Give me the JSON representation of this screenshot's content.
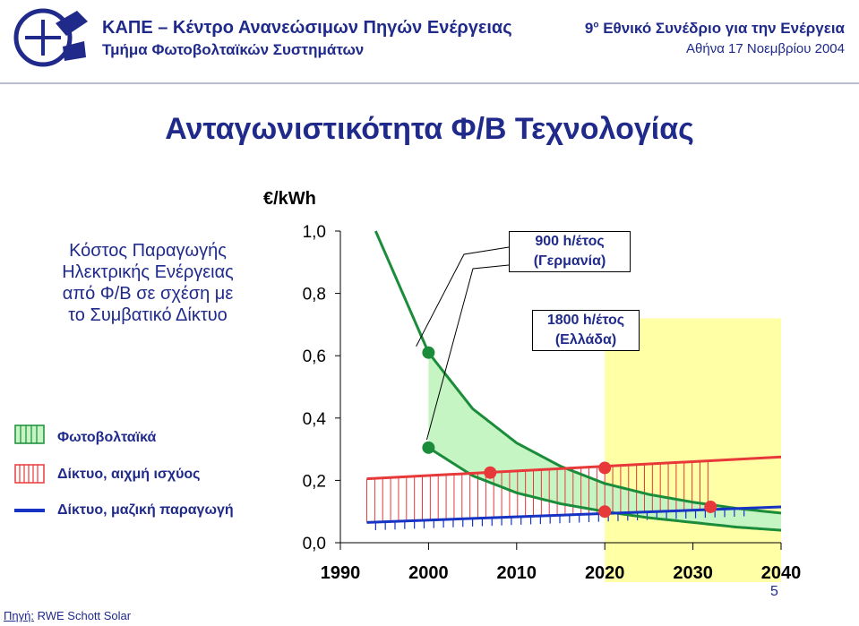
{
  "header": {
    "org_line1": "ΚΑΠΕ – Κέντρο Ανανεώσιμων Πηγών Ενέργειας",
    "org_line2": "Τμήμα Φωτοβολταϊκών Συστημάτων",
    "conf_number": "9",
    "conf_sup": "ο",
    "conf_line1": "Εθνικό Συνέδριο για την Ενέργεια",
    "conf_line2": "Αθήνα 17 Νοεμβρίου 2004",
    "logo_icon": "kape-logo-icon"
  },
  "slide_title": "Ανταγωνιστικότητα Φ/Β Τεχνολογίας",
  "side_text": [
    "Κόστος Παραγωγής",
    "Ηλεκτρικής Ενέργειας",
    "από Φ/Β σε σχέση με",
    "το Συμβατικό Δίκτυο"
  ],
  "legend": [
    {
      "label": "Φωτοβολταϊκά",
      "icon": "green-hatched-box-icon"
    },
    {
      "label": "Δίκτυο, αιχμή ισχύος",
      "icon": "red-hatched-box-icon"
    },
    {
      "label": "Δίκτυο, μαζική παραγωγή",
      "icon": "blue-line-icon"
    }
  ],
  "source_label": "Πηγή:",
  "source_text": " RWE Schott Solar",
  "page_number": "5",
  "colors": {
    "title_blue": "#1f2a8a",
    "pv_green": "#1a8c3a",
    "pv_fill": "#c6f5c4",
    "peak_red": "#e8393a",
    "bulk_blue": "#1733c4",
    "highlight_yellow": "#ffffa6"
  },
  "chart_data": {
    "type": "line",
    "ylabel": "€/kWh",
    "xlim": [
      1990,
      2040
    ],
    "ylim": [
      0,
      1.0
    ],
    "x_ticks": [
      1990,
      2000,
      2010,
      2020,
      2030,
      2040
    ],
    "x_tick_labels": [
      "1990",
      "2000",
      "2010",
      "2020",
      "2030",
      "2040"
    ],
    "y_ticks": [
      0,
      0.2,
      0.4,
      0.6,
      0.8,
      1.0
    ],
    "y_tick_labels": [
      "0,0",
      "0,2",
      "0,4",
      "0,6",
      "0,8",
      "1,0"
    ],
    "series": [
      {
        "name": "Φωτοβολταϊκά",
        "curve": "900 h/έτος (Γερμανία)",
        "color": "#1a8c3a",
        "x": [
          1994,
          2000,
          2005,
          2010,
          2015,
          2020,
          2025,
          2030,
          2035,
          2040
        ],
        "y": [
          1.0,
          0.61,
          0.43,
          0.32,
          0.245,
          0.19,
          0.155,
          0.13,
          0.11,
          0.095
        ]
      },
      {
        "name": "Φωτοβολταϊκά",
        "curve": "1800 h/έτος (Ελλάδα)",
        "color": "#1a8c3a",
        "x": [
          2000,
          2005,
          2010,
          2015,
          2020,
          2025,
          2030,
          2035,
          2040
        ],
        "y": [
          0.305,
          0.215,
          0.16,
          0.125,
          0.1,
          0.08,
          0.065,
          0.05,
          0.04
        ]
      },
      {
        "name": "Δίκτυο, αιχμή ισχύος",
        "color": "#e8393a",
        "x": [
          1993,
          2040
        ],
        "y": [
          0.205,
          0.275
        ]
      },
      {
        "name": "Δίκτυο, μαζική παραγωγή",
        "color": "#1733c4",
        "x": [
          1993,
          2040
        ],
        "y": [
          0.065,
          0.115
        ]
      }
    ],
    "markers": [
      {
        "x": 2000,
        "y": 0.61,
        "color": "#1a8c3a"
      },
      {
        "x": 2000,
        "y": 0.305,
        "color": "#1a8c3a"
      },
      {
        "x": 2007,
        "y": 0.225,
        "color": "#e8393a"
      },
      {
        "x": 2020,
        "y": 0.24,
        "color": "#e8393a"
      },
      {
        "x": 2020,
        "y": 0.1,
        "color": "#e8393a"
      },
      {
        "x": 2032,
        "y": 0.115,
        "color": "#e8393a"
      }
    ],
    "highlight_x_range": [
      2020,
      2040
    ],
    "annotations": [
      {
        "line1": "900 h/έτος",
        "line2": "(Γερμανία)"
      },
      {
        "line1": "1800 h/έτος",
        "line2": "(Ελλάδα)"
      }
    ]
  }
}
